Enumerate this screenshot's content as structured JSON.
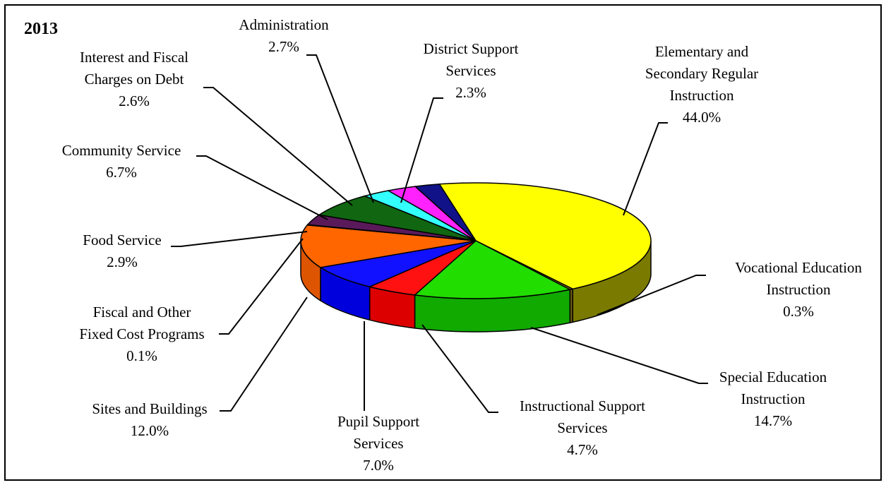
{
  "chart_data": {
    "type": "pie",
    "title": "2013",
    "series": [
      {
        "name": "Elementary and Secondary Regular Instruction",
        "value": 44.0,
        "label_lines": [
          "Elementary and",
          "Secondary Regular",
          "Instruction",
          "44.0%"
        ],
        "color": "#ffff00",
        "side": "#7a7a00"
      },
      {
        "name": "Vocational Education Instruction",
        "value": 0.3,
        "label_lines": [
          "Vocational Education",
          "Instruction",
          "0.3%"
        ],
        "color": "#9c8a2a",
        "side": "#6b5a10"
      },
      {
        "name": "Special Education Instruction",
        "value": 14.7,
        "label_lines": [
          "Special Education",
          "Instruction",
          "14.7%"
        ],
        "color": "#22dd00",
        "side": "#11aa00"
      },
      {
        "name": "Instructional Support Services",
        "value": 4.7,
        "label_lines": [
          "Instructional Support",
          "Services",
          "4.7%"
        ],
        "color": "#ff1111",
        "side": "#dd0000"
      },
      {
        "name": "Pupil Support Services",
        "value": 7.0,
        "label_lines": [
          "Pupil Support",
          "Services",
          "7.0%"
        ],
        "color": "#1111ff",
        "side": "#0000dd"
      },
      {
        "name": "Sites and Buildings",
        "value": 12.0,
        "label_lines": [
          "Sites and Buildings",
          "12.0%"
        ],
        "color": "#ff6600",
        "side": "#dd5500"
      },
      {
        "name": "Fiscal and Other Fixed Cost Programs",
        "value": 0.1,
        "label_lines": [
          "Fiscal and Other",
          "Fixed Cost Programs",
          "0.1%"
        ],
        "color": "#ff8800",
        "side": "#cc5500"
      },
      {
        "name": "Food Service",
        "value": 2.9,
        "label_lines": [
          "Food Service",
          "2.9%"
        ],
        "color": "#5a1a5a",
        "side": "#3a0a3a"
      },
      {
        "name": "Community Service",
        "value": 6.7,
        "label_lines": [
          "Community Service",
          "6.7%"
        ],
        "color": "#116611",
        "side": "#0a4a0a"
      },
      {
        "name": "Interest and Fiscal Charges on Debt",
        "value": 2.6,
        "label_lines": [
          "Interest and Fiscal",
          "Charges on Debt",
          "2.6%"
        ],
        "color": "#33ffff",
        "side": "#22bbbb"
      },
      {
        "name": "Administration",
        "value": 2.7,
        "label_lines": [
          "Administration",
          "2.7%"
        ],
        "color": "#ff22ff",
        "side": "#cc00cc"
      },
      {
        "name": "District Support Services",
        "value": 2.3,
        "label_lines": [
          "District Support",
          "Services",
          "2.3%"
        ],
        "color": "#111188",
        "side": "#0a0a55"
      }
    ]
  }
}
